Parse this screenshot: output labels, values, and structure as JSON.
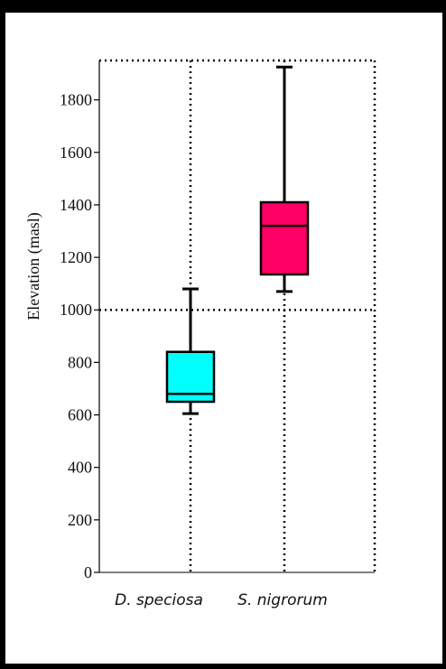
{
  "chart_data": {
    "type": "boxplot",
    "ylabel": "Elevation (masl)",
    "ylim": [
      0,
      1950
    ],
    "yticks": [
      0,
      200,
      400,
      600,
      800,
      1000,
      1200,
      1400,
      1600,
      1800
    ],
    "reference_line": 1000,
    "grid": "vertical dotted lines at category positions; horizontal dotted line at 1000",
    "categories": [
      "D. speciosa",
      "S. nigrorum"
    ],
    "series": [
      {
        "category": "D. speciosa",
        "min": 605,
        "q1": 650,
        "median": 680,
        "q3": 840,
        "max": 1080,
        "color": "#00ffff"
      },
      {
        "category": "S. nigrorum",
        "min": 1070,
        "q1": 1135,
        "median": 1320,
        "q3": 1410,
        "max": 1925,
        "color": "#ff0066"
      }
    ]
  }
}
